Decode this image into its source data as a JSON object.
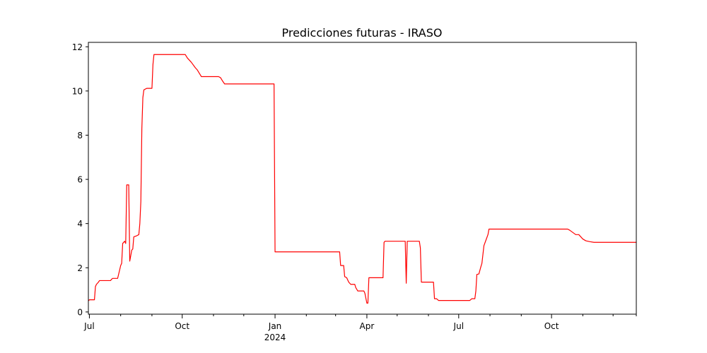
{
  "chart_data": {
    "type": "line",
    "title": "Predicciones futuras - IRASO",
    "xlabel": "",
    "ylabel": "",
    "x_ticks": [
      {
        "date": "2023-07-01",
        "label": "Jul",
        "sublabel": ""
      },
      {
        "date": "2023-10-01",
        "label": "Oct",
        "sublabel": ""
      },
      {
        "date": "2024-01-01",
        "label": "Jan",
        "sublabel": "2024"
      },
      {
        "date": "2024-04-01",
        "label": "Apr",
        "sublabel": ""
      },
      {
        "date": "2024-07-01",
        "label": "Jul",
        "sublabel": ""
      },
      {
        "date": "2024-10-01",
        "label": "Oct",
        "sublabel": ""
      }
    ],
    "y_ticks": [
      0,
      2,
      4,
      6,
      8,
      10,
      12
    ],
    "xlim": [
      "2023-06-30",
      "2024-12-24"
    ],
    "ylim": [
      -0.1,
      12.2
    ],
    "grid": false,
    "series": [
      {
        "color": "#ff0000",
        "points": [
          [
            "2023-06-30",
            0.5
          ],
          [
            "2023-07-01",
            0.55
          ],
          [
            "2023-07-06",
            0.55
          ],
          [
            "2023-07-07",
            1.15
          ],
          [
            "2023-07-08",
            1.25
          ],
          [
            "2023-07-10",
            1.35
          ],
          [
            "2023-07-11",
            1.42
          ],
          [
            "2023-07-22",
            1.42
          ],
          [
            "2023-07-23",
            1.48
          ],
          [
            "2023-07-24",
            1.52
          ],
          [
            "2023-07-29",
            1.52
          ],
          [
            "2023-07-31",
            1.9
          ],
          [
            "2023-08-01",
            2.1
          ],
          [
            "2023-08-02",
            2.2
          ],
          [
            "2023-08-03",
            3.1
          ],
          [
            "2023-08-05",
            3.2
          ],
          [
            "2023-08-06",
            3.1
          ],
          [
            "2023-08-07",
            5.75
          ],
          [
            "2023-08-09",
            5.75
          ],
          [
            "2023-08-10",
            2.3
          ],
          [
            "2023-08-12",
            2.8
          ],
          [
            "2023-08-13",
            2.85
          ],
          [
            "2023-08-14",
            3.4
          ],
          [
            "2023-08-17",
            3.45
          ],
          [
            "2023-08-19",
            3.5
          ],
          [
            "2023-08-20",
            4.0
          ],
          [
            "2023-08-21",
            5.0
          ],
          [
            "2023-08-22",
            8.3
          ],
          [
            "2023-08-23",
            9.7
          ],
          [
            "2023-08-24",
            10.05
          ],
          [
            "2023-08-26",
            10.1
          ],
          [
            "2023-08-27",
            10.12
          ],
          [
            "2023-09-01",
            10.12
          ],
          [
            "2023-09-02",
            11.2
          ],
          [
            "2023-09-03",
            11.65
          ],
          [
            "2023-10-04",
            11.65
          ],
          [
            "2023-10-06",
            11.5
          ],
          [
            "2023-10-10",
            11.3
          ],
          [
            "2023-10-14",
            11.05
          ],
          [
            "2023-10-16",
            10.95
          ],
          [
            "2023-10-20",
            10.65
          ],
          [
            "2023-11-06",
            10.65
          ],
          [
            "2023-11-08",
            10.6
          ],
          [
            "2023-11-10",
            10.45
          ],
          [
            "2023-11-12",
            10.32
          ],
          [
            "2023-12-31",
            10.32
          ],
          [
            "2024-01-01",
            2.72
          ],
          [
            "2024-03-05",
            2.72
          ],
          [
            "2024-03-06",
            2.1
          ],
          [
            "2024-03-09",
            2.1
          ],
          [
            "2024-03-10",
            1.6
          ],
          [
            "2024-03-12",
            1.55
          ],
          [
            "2024-03-14",
            1.35
          ],
          [
            "2024-03-16",
            1.25
          ],
          [
            "2024-03-20",
            1.25
          ],
          [
            "2024-03-21",
            1.1
          ],
          [
            "2024-03-23",
            0.95
          ],
          [
            "2024-03-29",
            0.95
          ],
          [
            "2024-03-30",
            0.85
          ],
          [
            "2024-04-01",
            0.4
          ],
          [
            "2024-04-02",
            0.4
          ],
          [
            "2024-04-03",
            1.55
          ],
          [
            "2024-04-17",
            1.55
          ],
          [
            "2024-04-18",
            3.15
          ],
          [
            "2024-04-19",
            3.2
          ],
          [
            "2024-05-09",
            3.2
          ],
          [
            "2024-05-10",
            1.3
          ],
          [
            "2024-05-11",
            3.2
          ],
          [
            "2024-05-23",
            3.2
          ],
          [
            "2024-05-24",
            2.9
          ],
          [
            "2024-05-25",
            1.35
          ],
          [
            "2024-06-06",
            1.35
          ],
          [
            "2024-06-07",
            0.6
          ],
          [
            "2024-06-09",
            0.6
          ],
          [
            "2024-06-11",
            0.52
          ],
          [
            "2024-07-12",
            0.52
          ],
          [
            "2024-07-14",
            0.6
          ],
          [
            "2024-07-17",
            0.6
          ],
          [
            "2024-07-18",
            0.95
          ],
          [
            "2024-07-19",
            1.7
          ],
          [
            "2024-07-21",
            1.72
          ],
          [
            "2024-07-23",
            2.05
          ],
          [
            "2024-07-24",
            2.2
          ],
          [
            "2024-07-25",
            2.6
          ],
          [
            "2024-07-26",
            3.0
          ],
          [
            "2024-07-28",
            3.25
          ],
          [
            "2024-07-30",
            3.5
          ],
          [
            "2024-07-31",
            3.75
          ],
          [
            "2024-10-17",
            3.75
          ],
          [
            "2024-10-19",
            3.7
          ],
          [
            "2024-10-22",
            3.6
          ],
          [
            "2024-10-25",
            3.5
          ],
          [
            "2024-10-28",
            3.5
          ],
          [
            "2024-10-30",
            3.4
          ],
          [
            "2024-11-01",
            3.3
          ],
          [
            "2024-11-04",
            3.22
          ],
          [
            "2024-11-08",
            3.18
          ],
          [
            "2024-11-12",
            3.15
          ],
          [
            "2024-12-24",
            3.15
          ]
        ]
      }
    ]
  }
}
